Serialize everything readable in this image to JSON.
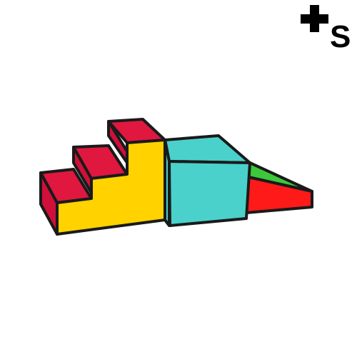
{
  "brand": {
    "logo_text": "+S"
  },
  "colors": {
    "background": "#ffffff",
    "outline": "#1a1a1a",
    "step_top": "#e0173f",
    "step_side": "#d0103a",
    "stair_front": "#ffd200",
    "cube_front": "#4ad1cb",
    "cube_top": "#4ad1cb",
    "slide_top": "#3cc83a",
    "slide_side": "#ff1a1a",
    "logo": "#000000"
  },
  "objects": [
    {
      "name": "three-step-stair-block",
      "color": "yellow with red steps"
    },
    {
      "name": "cube-block",
      "color": "turquoise"
    },
    {
      "name": "ramp-block",
      "color": "red with green top"
    }
  ]
}
